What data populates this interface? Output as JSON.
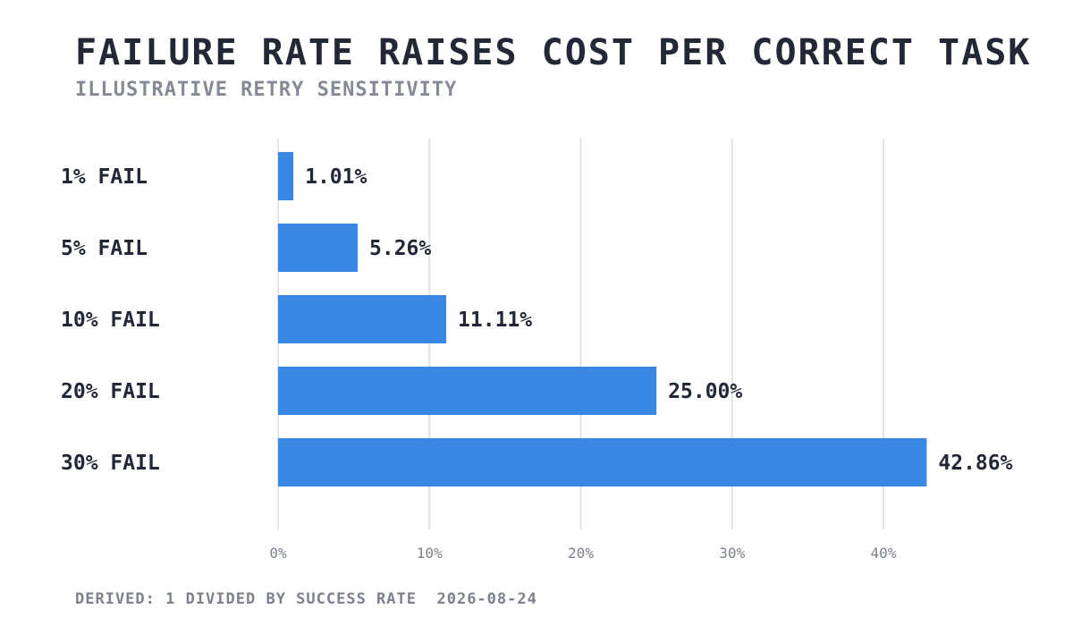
{
  "header": {
    "title": "FAILURE RATE RAISES COST PER CORRECT TASK",
    "subtitle": "ILLUSTRATIVE RETRY SENSITIVITY"
  },
  "footer": {
    "source": "DERIVED: 1 DIVIDED BY SUCCESS RATE",
    "date": "2026-08-24"
  },
  "chart_data": {
    "type": "bar",
    "orientation": "horizontal",
    "categories": [
      "1% FAIL",
      "5% FAIL",
      "10% FAIL",
      "20% FAIL",
      "30% FAIL"
    ],
    "values": [
      1.01,
      5.26,
      11.11,
      25.0,
      42.86
    ],
    "value_labels": [
      "1.01%",
      "5.26%",
      "11.11%",
      "25.00%",
      "42.86%"
    ],
    "x_ticks": [
      "0%",
      "10%",
      "20%",
      "30%",
      "40%"
    ],
    "x_tick_values": [
      0,
      10,
      20,
      30,
      40
    ],
    "xlim": [
      0,
      44
    ],
    "grid": true,
    "bar_color": "#3a86e3",
    "grid_color": "#e1e3ed"
  }
}
